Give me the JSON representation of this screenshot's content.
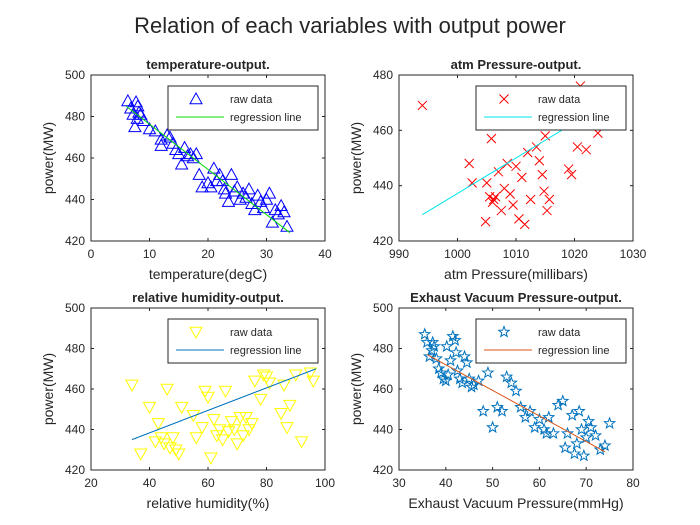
{
  "figure_title": "Relation of each variables with output power",
  "chart_data": [
    {
      "type": "scatter",
      "title": "temperature-output.",
      "xlabel": "temperature(degC)",
      "ylabel": "power(MW)",
      "xlim": [
        0,
        40
      ],
      "ylim": [
        420,
        500
      ],
      "xticks": [
        0,
        10,
        20,
        30,
        40
      ],
      "yticks": [
        420,
        440,
        460,
        480,
        500
      ],
      "legend": [
        "raw data",
        "regression line"
      ],
      "legend_position": "top-right",
      "marker": "triangle-up",
      "marker_color": "#0000ff",
      "line_color": "#00dd00",
      "regression": [
        [
          6,
          485
        ],
        [
          34,
          424
        ]
      ],
      "points": [
        [
          6.3,
          487.5
        ],
        [
          6.8,
          484
        ],
        [
          7.2,
          481
        ],
        [
          7.5,
          475
        ],
        [
          7.7,
          487
        ],
        [
          7.9,
          479
        ],
        [
          8.0,
          485
        ],
        [
          8.2,
          482
        ],
        [
          8.5,
          481
        ],
        [
          9.0,
          478
        ],
        [
          10.0,
          474
        ],
        [
          11.0,
          473
        ],
        [
          12.0,
          469
        ],
        [
          12.0,
          466
        ],
        [
          13.0,
          471
        ],
        [
          13.5,
          470
        ],
        [
          14.0,
          467
        ],
        [
          14.5,
          464
        ],
        [
          15.0,
          462
        ],
        [
          15.5,
          457
        ],
        [
          16.0,
          465
        ],
        [
          16.5,
          461
        ],
        [
          17.0,
          462
        ],
        [
          17.5,
          460
        ],
        [
          18.0,
          462
        ],
        [
          18.5,
          452
        ],
        [
          19.0,
          446
        ],
        [
          20.0,
          448
        ],
        [
          20.5,
          446
        ],
        [
          21.0,
          455
        ],
        [
          21.5,
          449
        ],
        [
          22.0,
          452
        ],
        [
          22.5,
          449
        ],
        [
          22.8,
          445
        ],
        [
          23.0,
          443
        ],
        [
          23.5,
          439
        ],
        [
          24.0,
          452
        ],
        [
          24.5,
          444
        ],
        [
          25.0,
          446
        ],
        [
          25.5,
          440
        ],
        [
          26.0,
          443
        ],
        [
          26.5,
          441
        ],
        [
          27.0,
          445
        ],
        [
          27.5,
          438
        ],
        [
          28.0,
          435
        ],
        [
          28.5,
          442
        ],
        [
          29.0,
          439
        ],
        [
          29.5,
          436
        ],
        [
          30.0,
          440
        ],
        [
          30.5,
          443
        ],
        [
          31.0,
          429
        ],
        [
          31.5,
          435
        ],
        [
          32.0,
          433
        ],
        [
          32.5,
          437
        ],
        [
          33.0,
          434
        ],
        [
          33.5,
          427
        ]
      ]
    },
    {
      "type": "scatter",
      "title": "atm Pressure-output.",
      "xlabel": "atm Pressure(millibars)",
      "ylabel": "power(MW)",
      "xlim": [
        990,
        1030
      ],
      "ylim": [
        420,
        480
      ],
      "xticks": [
        990,
        1000,
        1010,
        1020,
        1030
      ],
      "yticks": [
        420,
        440,
        460,
        480
      ],
      "legend": [
        "raw data",
        "regression line"
      ],
      "legend_position": "top-right",
      "marker": "x",
      "marker_color": "#ff0000",
      "line_color": "#00e5ee",
      "regression": [
        [
          994,
          429.5
        ],
        [
          1026,
          470.5
        ]
      ],
      "points": [
        [
          994,
          469
        ],
        [
          1002,
          448
        ],
        [
          1002.5,
          441
        ],
        [
          1004.5,
          463
        ],
        [
          1004.8,
          427
        ],
        [
          1005,
          441
        ],
        [
          1005.5,
          436
        ],
        [
          1006,
          434
        ],
        [
          1006.2,
          435
        ],
        [
          1006.5,
          436
        ],
        [
          1007,
          445
        ],
        [
          1007.5,
          431
        ],
        [
          1008,
          439
        ],
        [
          1008.5,
          448
        ],
        [
          1009,
          437
        ],
        [
          1009.5,
          433
        ],
        [
          1010,
          447
        ],
        [
          1010.5,
          428
        ],
        [
          1011,
          443
        ],
        [
          1011.5,
          426
        ],
        [
          1012,
          452
        ],
        [
          1012.5,
          435
        ],
        [
          1013,
          462
        ],
        [
          1013.5,
          454
        ],
        [
          1014,
          449
        ],
        [
          1014.5,
          444
        ],
        [
          1015,
          458
        ],
        [
          1015.3,
          431
        ],
        [
          1015.7,
          435
        ],
        [
          1016,
          470
        ],
        [
          1016.5,
          465
        ],
        [
          1017,
          473
        ],
        [
          1017.5,
          469
        ],
        [
          1018,
          462
        ],
        [
          1018.5,
          474
        ],
        [
          1019,
          446
        ],
        [
          1019.5,
          444
        ],
        [
          1020,
          468
        ],
        [
          1020.5,
          454
        ],
        [
          1021,
          476
        ],
        [
          1022,
          453
        ],
        [
          1024,
          459
        ],
        [
          1005.8,
          457
        ],
        [
          1012.2,
          465
        ],
        [
          1014.8,
          438
        ]
      ]
    },
    {
      "type": "scatter",
      "title": "relative humidity-output.",
      "xlabel": "relative humidity(%)",
      "ylabel": "power(MW)",
      "xlim": [
        20,
        100
      ],
      "ylim": [
        420,
        500
      ],
      "xticks": [
        20,
        40,
        60,
        80,
        100
      ],
      "yticks": [
        420,
        440,
        460,
        480,
        500
      ],
      "legend": [
        "raw data",
        "regression line"
      ],
      "legend_position": "top-right",
      "marker": "triangle-down",
      "marker_color": "#ffff00",
      "line_color": "#0072bd",
      "regression": [
        [
          34,
          435
        ],
        [
          97,
          470
        ]
      ],
      "points": [
        [
          34,
          462
        ],
        [
          37,
          428
        ],
        [
          40,
          451
        ],
        [
          42,
          434
        ],
        [
          43,
          443
        ],
        [
          44,
          436
        ],
        [
          45,
          433
        ],
        [
          46,
          460
        ],
        [
          47,
          431
        ],
        [
          48,
          436
        ],
        [
          49,
          430
        ],
        [
          50,
          428
        ],
        [
          51,
          451
        ],
        [
          55,
          447
        ],
        [
          56,
          436
        ],
        [
          58,
          441
        ],
        [
          59,
          459
        ],
        [
          60,
          456
        ],
        [
          61,
          426
        ],
        [
          62,
          445
        ],
        [
          63,
          437
        ],
        [
          64,
          440
        ],
        [
          65,
          435
        ],
        [
          66,
          459
        ],
        [
          67,
          439
        ],
        [
          68,
          444
        ],
        [
          69,
          440
        ],
        [
          70,
          433
        ],
        [
          71,
          446
        ],
        [
          72,
          437
        ],
        [
          73,
          446
        ],
        [
          74,
          440
        ],
        [
          75,
          443
        ],
        [
          76,
          464
        ],
        [
          78,
          455
        ],
        [
          79,
          467
        ],
        [
          80,
          466
        ],
        [
          81,
          463
        ],
        [
          85,
          448
        ],
        [
          86,
          462
        ],
        [
          87,
          441
        ],
        [
          88,
          452
        ],
        [
          90,
          467
        ],
        [
          92,
          434
        ],
        [
          95,
          468
        ],
        [
          96,
          464
        ]
      ]
    },
    {
      "type": "scatter",
      "title": "Exhaust Vacuum Pressure-output.",
      "xlabel": "Exhaust Vacuum Pressure(mmHg)",
      "ylabel": "power(MW)",
      "xlim": [
        30,
        80
      ],
      "ylim": [
        420,
        500
      ],
      "xticks": [
        30,
        40,
        50,
        60,
        70,
        80
      ],
      "yticks": [
        420,
        440,
        460,
        480,
        500
      ],
      "legend": [
        "raw data",
        "regression line"
      ],
      "legend_position": "top-right",
      "marker": "star",
      "marker_color": "#0072bd",
      "line_color": "#d95319",
      "regression": [
        [
          36,
          477
        ],
        [
          74,
          429
        ]
      ],
      "points": [
        [
          35.5,
          487
        ],
        [
          36,
          483
        ],
        [
          36.5,
          476
        ],
        [
          37,
          479
        ],
        [
          37.5,
          481
        ],
        [
          38,
          475
        ],
        [
          38.5,
          470
        ],
        [
          39,
          468
        ],
        [
          39.5,
          465
        ],
        [
          40,
          464
        ],
        [
          40.5,
          467
        ],
        [
          41,
          474
        ],
        [
          41.5,
          486
        ],
        [
          42,
          484
        ],
        [
          42.5,
          469
        ],
        [
          43,
          465
        ],
        [
          43.5,
          463
        ],
        [
          44,
          476
        ],
        [
          44.5,
          473
        ],
        [
          45,
          465
        ],
        [
          45.5,
          461
        ],
        [
          46,
          462
        ],
        [
          47,
          464
        ],
        [
          48,
          449
        ],
        [
          49,
          468
        ],
        [
          50,
          441
        ],
        [
          51,
          451
        ],
        [
          52,
          449
        ],
        [
          53,
          466
        ],
        [
          54,
          463
        ],
        [
          55,
          459
        ],
        [
          56,
          451
        ],
        [
          57,
          446
        ],
        [
          58,
          449
        ],
        [
          59,
          441
        ],
        [
          60,
          445
        ],
        [
          61,
          440
        ],
        [
          62,
          446
        ],
        [
          63,
          438
        ],
        [
          64,
          452
        ],
        [
          65,
          454
        ],
        [
          66,
          438
        ],
        [
          67,
          447
        ],
        [
          68,
          433
        ],
        [
          69,
          440
        ],
        [
          70,
          436
        ],
        [
          71,
          441
        ],
        [
          72,
          437
        ],
        [
          73,
          430
        ],
        [
          74,
          432
        ],
        [
          75,
          443
        ],
        [
          37.2,
          483
        ],
        [
          40.2,
          481
        ],
        [
          42.2,
          478
        ],
        [
          61.5,
          438
        ],
        [
          65.5,
          431
        ],
        [
          67.5,
          428
        ],
        [
          69.5,
          427
        ],
        [
          70.5,
          444
        ],
        [
          68.5,
          449
        ]
      ]
    }
  ]
}
